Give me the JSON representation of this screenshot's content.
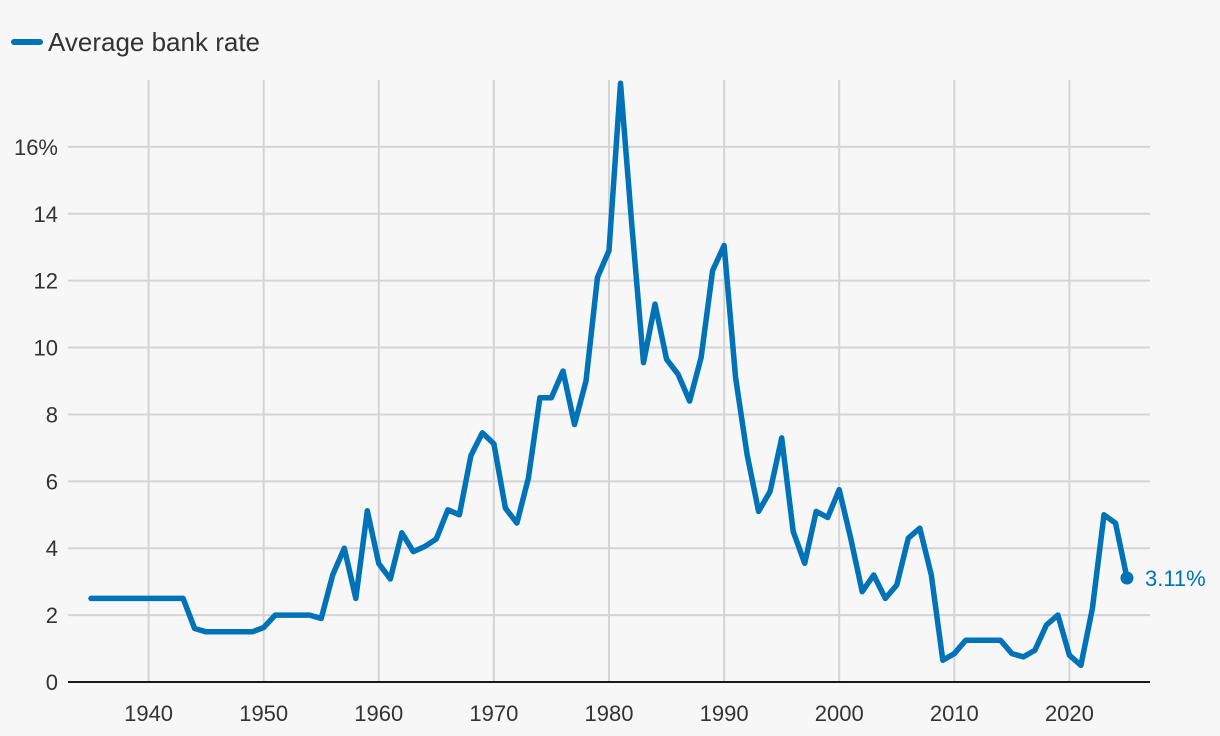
{
  "chart_data": {
    "type": "line",
    "title": "",
    "xlabel": "",
    "ylabel": "",
    "xlim": [
      1933,
      2027
    ],
    "ylim": [
      0,
      18
    ],
    "x_ticks": [
      1940,
      1950,
      1960,
      1970,
      1980,
      1990,
      2000,
      2010,
      2020
    ],
    "x_tick_labels": [
      "1940",
      "1950",
      "1960",
      "1970",
      "1980",
      "1990",
      "2000",
      "2010",
      "2020"
    ],
    "y_ticks": [
      0,
      2,
      4,
      6,
      8,
      10,
      12,
      14,
      16
    ],
    "y_tick_labels": [
      "0",
      "2",
      "4",
      "6",
      "8",
      "10",
      "12",
      "14",
      "16%"
    ],
    "grid": true,
    "legend": {
      "position": "top-left",
      "entries": [
        {
          "name": "Average bank rate",
          "color": "#0072b8"
        }
      ]
    },
    "series": [
      {
        "name": "Average bank rate",
        "color": "#0072b8",
        "x": [
          1935,
          1936,
          1937,
          1938,
          1939,
          1940,
          1941,
          1942,
          1943,
          1944,
          1945,
          1946,
          1947,
          1948,
          1949,
          1950,
          1951,
          1952,
          1953,
          1954,
          1955,
          1956,
          1957,
          1958,
          1959,
          1960,
          1961,
          1962,
          1963,
          1964,
          1965,
          1966,
          1967,
          1968,
          1969,
          1970,
          1971,
          1972,
          1973,
          1974,
          1975,
          1976,
          1977,
          1978,
          1979,
          1980,
          1981,
          1982,
          1983,
          1984,
          1985,
          1986,
          1987,
          1988,
          1989,
          1990,
          1991,
          1992,
          1993,
          1994,
          1995,
          1996,
          1997,
          1998,
          1999,
          2000,
          2001,
          2002,
          2003,
          2004,
          2005,
          2006,
          2007,
          2008,
          2009,
          2010,
          2011,
          2012,
          2013,
          2014,
          2015,
          2016,
          2017,
          2018,
          2019,
          2020,
          2021,
          2022,
          2023,
          2024,
          2025
        ],
        "y": [
          2.5,
          2.5,
          2.5,
          2.5,
          2.5,
          2.5,
          2.5,
          2.5,
          2.5,
          1.6,
          1.5,
          1.5,
          1.5,
          1.5,
          1.5,
          1.63,
          2.0,
          2.0,
          2.0,
          2.0,
          1.9,
          3.2,
          4.0,
          2.5,
          5.12,
          3.54,
          3.08,
          4.46,
          3.9,
          4.05,
          4.28,
          5.15,
          5.0,
          6.77,
          7.45,
          7.12,
          5.2,
          4.75,
          6.1,
          8.5,
          8.5,
          9.3,
          7.7,
          9.0,
          12.1,
          12.9,
          17.9,
          13.6,
          9.55,
          11.3,
          9.65,
          9.2,
          8.4,
          9.7,
          12.3,
          13.05,
          9.1,
          6.8,
          5.1,
          5.7,
          7.3,
          4.5,
          3.55,
          5.1,
          4.92,
          5.75,
          4.3,
          2.7,
          3.2,
          2.5,
          2.9,
          4.3,
          4.6,
          3.2,
          0.65,
          0.85,
          1.25,
          1.25,
          1.25,
          1.25,
          0.85,
          0.75,
          0.95,
          1.7,
          2.0,
          0.8,
          0.5,
          2.2,
          5.0,
          4.75,
          3.11
        ]
      }
    ],
    "annotations": [
      {
        "text": "3.11%",
        "x": 2025,
        "y": 3.11
      }
    ]
  }
}
